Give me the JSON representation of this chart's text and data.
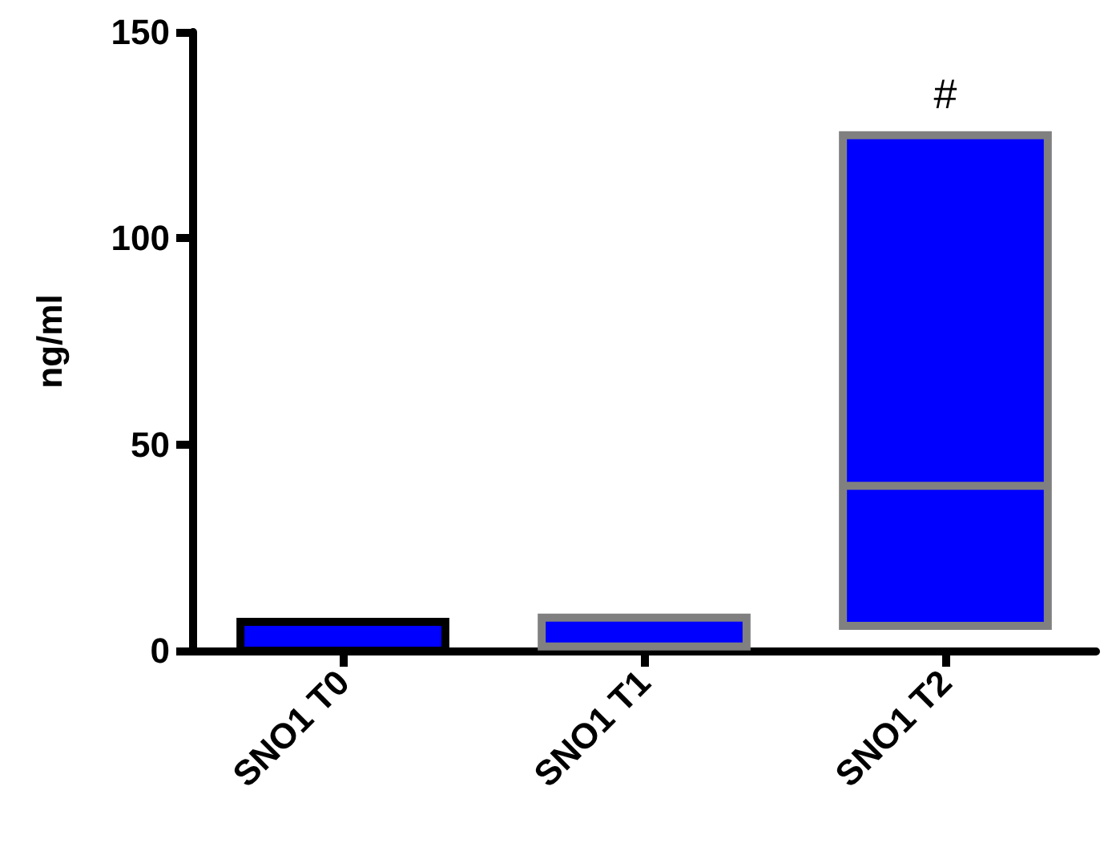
{
  "chart_data": {
    "type": "box",
    "ylabel": "ng/ml",
    "categories": [
      "SNO1 T0",
      "SNO1 T1",
      "SNO1 T2"
    ],
    "color": "#0000ff",
    "colors": [
      "#000000",
      "#808080",
      "#808080"
    ],
    "boxes": [
      {
        "low": 0,
        "q1": 0,
        "median": 7,
        "q3": 7,
        "high": 7
      },
      {
        "low": 1,
        "q1": 1,
        "median": 8,
        "q3": 8,
        "high": 8
      },
      {
        "low": 6,
        "q1": 6,
        "median": 40,
        "q3": 125,
        "high": 125
      }
    ],
    "ylim": [
      0,
      150
    ],
    "yticks": [
      0,
      50,
      100,
      150
    ],
    "annotations": [
      "#"
    ]
  }
}
